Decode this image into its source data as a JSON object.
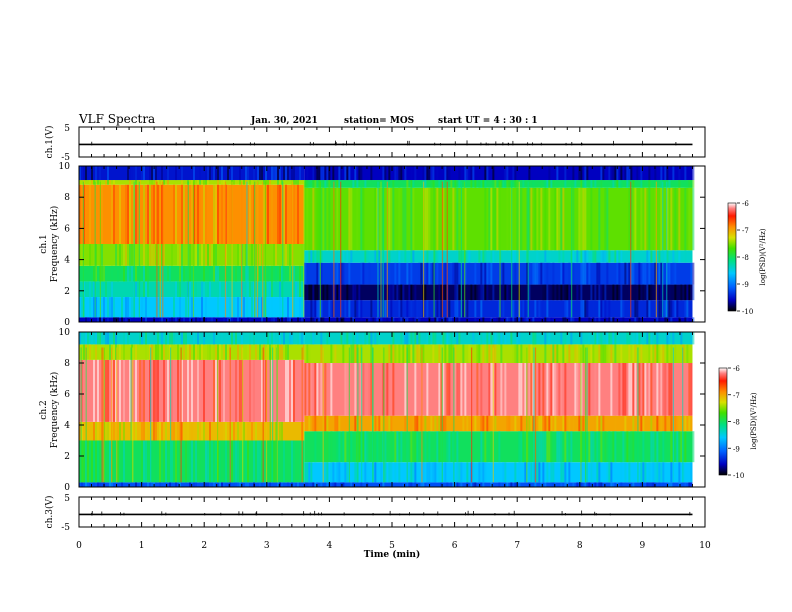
{
  "header": {
    "title": "VLF Spectra",
    "date": "Jan. 30, 2021",
    "station": "station= MOS",
    "start_ut": "start  UT  =   4 : 30 : 1"
  },
  "chart_data": {
    "type": "heatmap",
    "xlabel": "Time  (min)",
    "xlim": [
      0,
      10
    ],
    "x_ticks": [
      "0",
      "1",
      "2",
      "3",
      "4",
      "5",
      "6",
      "7",
      "8",
      "9",
      "10"
    ],
    "data_end_minute": 9.8,
    "panels": [
      {
        "id": "ch1_waveform",
        "ylabel": "ch.1(V)",
        "ylim": [
          -5,
          5
        ],
        "y_ticks": [
          "5",
          "-5"
        ],
        "trace_level": -0.8
      },
      {
        "id": "ch1_spectrogram",
        "ylabel_line1": "ch.1",
        "ylabel_line2": "Frequency  (kHz)",
        "ylim": [
          0,
          10
        ],
        "y_ticks": [
          "0",
          "2",
          "4",
          "6",
          "8",
          "10"
        ],
        "colorbar_label": "log(PSD)(V²/Hz)",
        "colorbar_range": [
          -10,
          -6
        ],
        "colorbar_ticks": [
          "-6",
          "-7",
          "-8",
          "-9",
          "-10"
        ],
        "segments": [
          {
            "t_start": 0.0,
            "t_end": 3.6,
            "bands": [
              {
                "f0": 0.0,
                "f1": 0.3,
                "level": -9.6
              },
              {
                "f0": 0.3,
                "f1": 1.6,
                "level": -8.6
              },
              {
                "f0": 1.6,
                "f1": 2.6,
                "level": -8.3
              },
              {
                "f0": 2.6,
                "f1": 3.6,
                "level": -8.0
              },
              {
                "f0": 3.6,
                "f1": 5.0,
                "level": -7.5
              },
              {
                "f0": 5.0,
                "f1": 8.8,
                "level": -6.9
              },
              {
                "f0": 8.8,
                "f1": 9.1,
                "level": -7.4
              },
              {
                "f0": 9.1,
                "f1": 10.0,
                "level": -9.5
              }
            ]
          },
          {
            "t_start": 3.6,
            "t_end": 9.8,
            "bands": [
              {
                "f0": 0.0,
                "f1": 0.3,
                "level": -9.6
              },
              {
                "f0": 0.3,
                "f1": 1.4,
                "level": -9.4
              },
              {
                "f0": 1.4,
                "f1": 2.4,
                "level": -9.8
              },
              {
                "f0": 2.4,
                "f1": 3.8,
                "level": -9.3
              },
              {
                "f0": 3.8,
                "f1": 4.6,
                "level": -8.4
              },
              {
                "f0": 4.6,
                "f1": 8.6,
                "level": -7.6
              },
              {
                "f0": 8.6,
                "f1": 9.1,
                "level": -8.0
              },
              {
                "f0": 9.1,
                "f1": 10.0,
                "level": -9.6
              }
            ]
          }
        ]
      },
      {
        "id": "ch2_spectrogram",
        "ylabel_line1": "ch.2",
        "ylabel_line2": "Frequency  (kHz)",
        "ylim": [
          0,
          10
        ],
        "y_ticks": [
          "0",
          "2",
          "4",
          "6",
          "8",
          "10"
        ],
        "colorbar_label": "log(PSD)(V²/Hz)",
        "colorbar_range": [
          -10,
          -6
        ],
        "colorbar_ticks": [
          "-6",
          "-7",
          "-8",
          "-9",
          "-10"
        ],
        "segments": [
          {
            "t_start": 0.0,
            "t_end": 3.6,
            "bands": [
              {
                "f0": 0.0,
                "f1": 0.3,
                "level": -9.2
              },
              {
                "f0": 0.3,
                "f1": 3.0,
                "level": -8.0
              },
              {
                "f0": 3.0,
                "f1": 4.2,
                "level": -7.1
              },
              {
                "f0": 4.2,
                "f1": 8.2,
                "level": -6.2
              },
              {
                "f0": 8.2,
                "f1": 9.2,
                "level": -7.4
              },
              {
                "f0": 9.2,
                "f1": 10.0,
                "level": -8.4
              }
            ]
          },
          {
            "t_start": 3.6,
            "t_end": 9.8,
            "bands": [
              {
                "f0": 0.0,
                "f1": 0.3,
                "level": -9.2
              },
              {
                "f0": 0.3,
                "f1": 1.6,
                "level": -8.6
              },
              {
                "f0": 1.6,
                "f1": 3.6,
                "level": -8.0
              },
              {
                "f0": 3.6,
                "f1": 4.6,
                "level": -7.0
              },
              {
                "f0": 4.6,
                "f1": 8.0,
                "level": -6.2
              },
              {
                "f0": 8.0,
                "f1": 9.2,
                "level": -7.4
              },
              {
                "f0": 9.2,
                "f1": 10.0,
                "level": -8.4
              }
            ]
          }
        ]
      },
      {
        "id": "ch3_waveform",
        "ylabel": "ch.3(V)",
        "ylim": [
          -5,
          5
        ],
        "y_ticks": [
          "5",
          "-5"
        ],
        "trace_level": -0.8
      }
    ],
    "grid": false,
    "legend": "colorbars-right"
  }
}
